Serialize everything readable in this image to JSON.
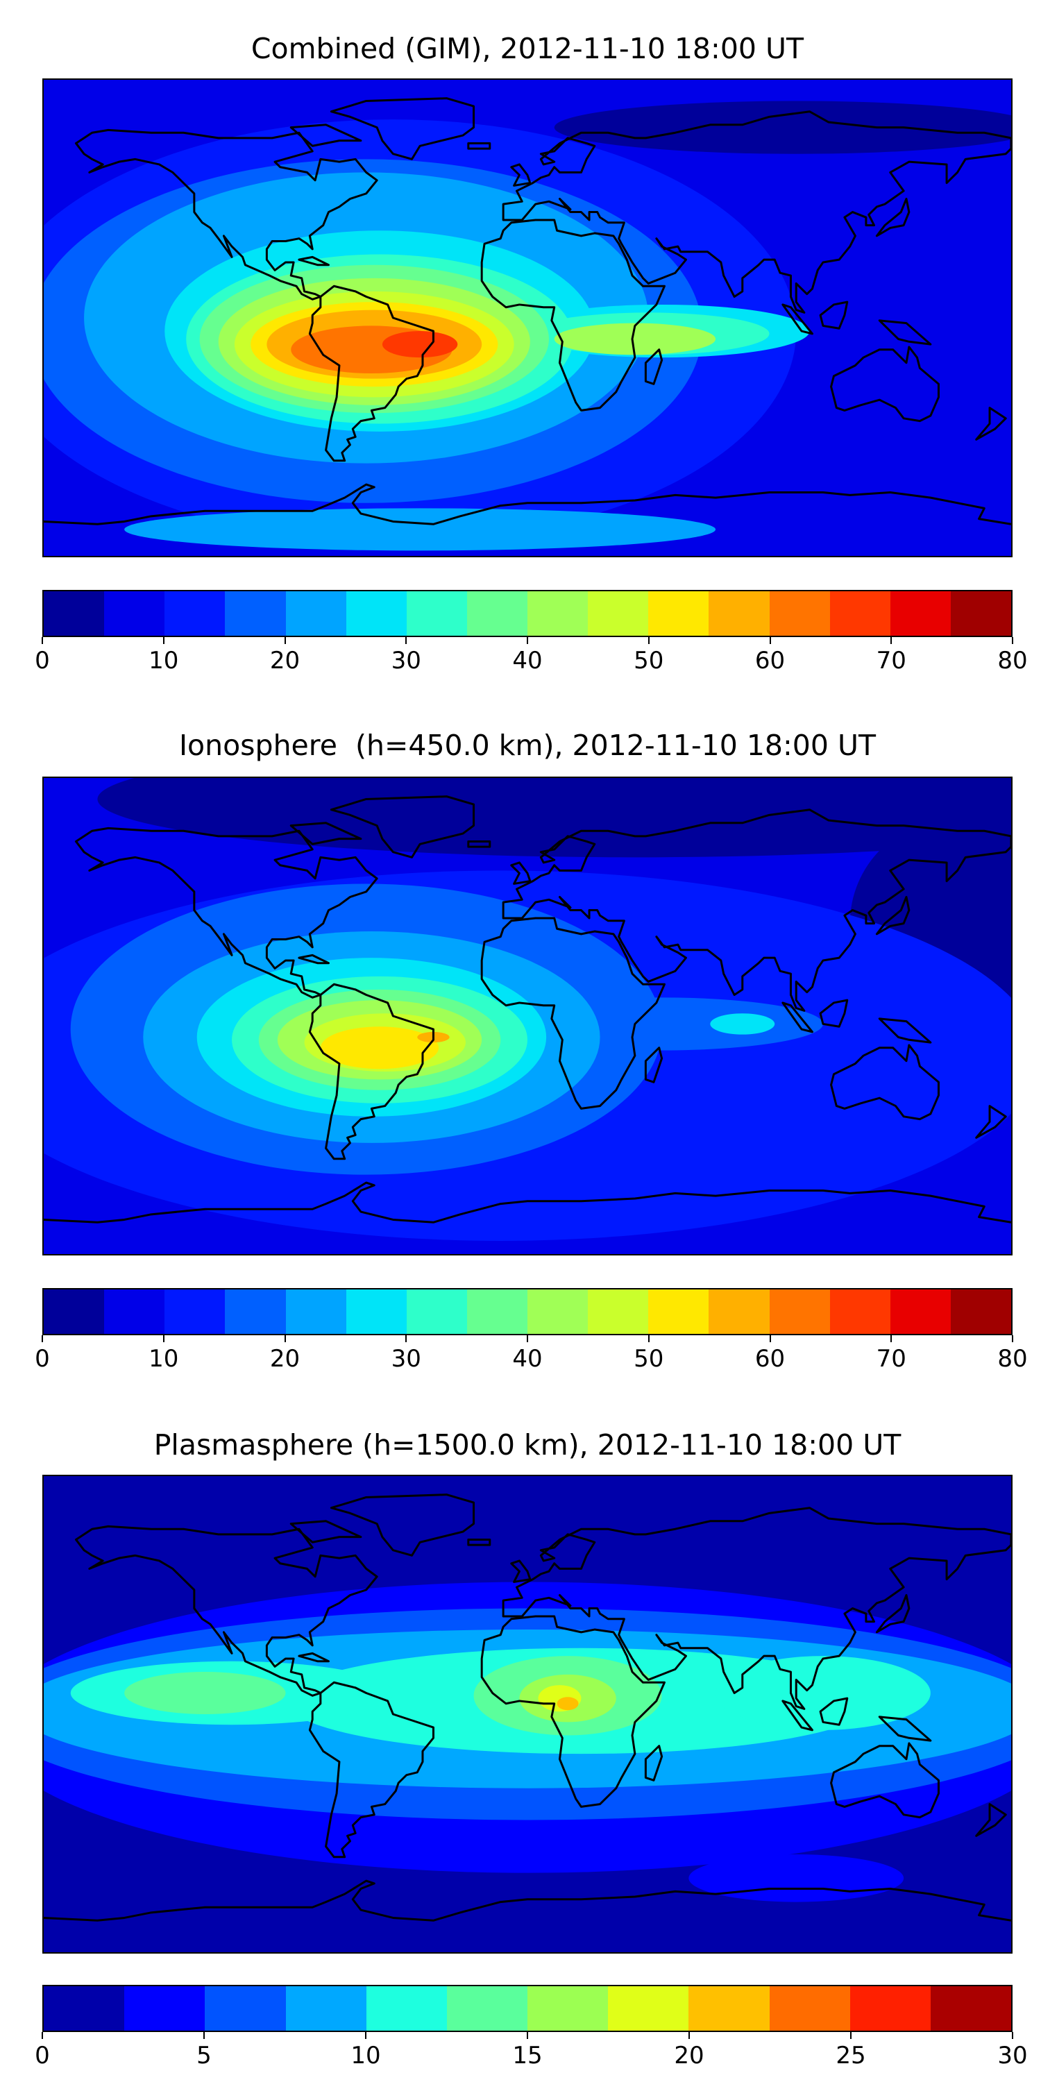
{
  "chart_data": [
    {
      "type": "heatmap",
      "title": "Combined (GIM), 2012-11-10 18:00 UT",
      "projection": "plate-carree",
      "xlim": [
        -180,
        180
      ],
      "ylim": [
        -90,
        90
      ],
      "colorbar": {
        "min": 0,
        "max": 80,
        "step": 5,
        "ticks": [
          0,
          10,
          20,
          30,
          40,
          50,
          60,
          70,
          80
        ],
        "tick_labels": [
          "0",
          "10",
          "20",
          "30",
          "40",
          "50",
          "60",
          "70",
          "80"
        ],
        "colors": [
          "#00009a",
          "#0000e8",
          "#0018ff",
          "#0060ff",
          "#00a4ff",
          "#00e4f8",
          "#2effca",
          "#66ff90",
          "#a0ff56",
          "#caff2c",
          "#ffe800",
          "#ffb000",
          "#ff7400",
          "#ff3800",
          "#e80000",
          "#a00000"
        ]
      },
      "background_level": 1,
      "regions": [
        {
          "level": 0,
          "lon": 100,
          "lat": 72,
          "dlon": 90,
          "dlat": 10
        },
        {
          "level": 2,
          "lon": -50,
          "lat": -5,
          "dlon": 150,
          "dlat": 80
        },
        {
          "level": 3,
          "lon": -60,
          "lat": -5,
          "dlon": 125,
          "dlat": 65
        },
        {
          "level": 4,
          "lon": -60,
          "lat": 0,
          "dlon": 105,
          "dlat": 55
        },
        {
          "level": 4,
          "lon": -40,
          "lat": -80,
          "dlon": 110,
          "dlat": 8
        },
        {
          "level": 5,
          "lon": -55,
          "lat": -5,
          "dlon": 80,
          "dlat": 38
        },
        {
          "level": 5,
          "lon": 50,
          "lat": -5,
          "dlon": 55,
          "dlat": 10
        },
        {
          "level": 6,
          "lon": -55,
          "lat": -8,
          "dlon": 72,
          "dlat": 32
        },
        {
          "level": 6,
          "lon": 45,
          "lat": -6,
          "dlon": 45,
          "dlat": 8
        },
        {
          "level": 7,
          "lon": -57,
          "lat": -8,
          "dlon": 65,
          "dlat": 28
        },
        {
          "level": 8,
          "lon": -57,
          "lat": -9,
          "dlon": 58,
          "dlat": 24
        },
        {
          "level": 8,
          "lon": 40,
          "lat": -8,
          "dlon": 30,
          "dlat": 6
        },
        {
          "level": 9,
          "lon": -57,
          "lat": -10,
          "dlon": 52,
          "dlat": 20
        },
        {
          "level": 10,
          "lon": -57,
          "lat": -10,
          "dlon": 46,
          "dlat": 16
        },
        {
          "level": 11,
          "lon": -57,
          "lat": -10,
          "dlon": 40,
          "dlat": 13
        },
        {
          "level": 12,
          "lon": -58,
          "lat": -12,
          "dlon": 30,
          "dlat": 9
        },
        {
          "level": 13,
          "lon": -40,
          "lat": -10,
          "dlon": 14,
          "dlat": 5
        }
      ]
    },
    {
      "type": "heatmap",
      "title": "Ionosphere  (h=450.0 km), 2012-11-10 18:00 UT",
      "projection": "plate-carree",
      "xlim": [
        -180,
        180
      ],
      "ylim": [
        -90,
        90
      ],
      "colorbar": {
        "min": 0,
        "max": 80,
        "step": 5,
        "ticks": [
          0,
          10,
          20,
          30,
          40,
          50,
          60,
          70,
          80
        ],
        "tick_labels": [
          "0",
          "10",
          "20",
          "30",
          "40",
          "50",
          "60",
          "70",
          "80"
        ],
        "colors": [
          "#00009a",
          "#0000e8",
          "#0018ff",
          "#0060ff",
          "#00a4ff",
          "#00e4f8",
          "#2effca",
          "#66ff90",
          "#a0ff56",
          "#caff2c",
          "#ffe800",
          "#ffb000",
          "#ff7400",
          "#ff3800",
          "#e80000",
          "#a00000"
        ]
      },
      "background_level": 1,
      "regions": [
        {
          "level": 0,
          "lon": 40,
          "lat": 82,
          "dlon": 200,
          "dlat": 22
        },
        {
          "level": 0,
          "lon": 160,
          "lat": 35,
          "dlon": 40,
          "dlat": 40
        },
        {
          "level": 2,
          "lon": -10,
          "lat": -15,
          "dlon": 200,
          "dlat": 70
        },
        {
          "level": 3,
          "lon": -60,
          "lat": -5,
          "dlon": 110,
          "dlat": 55
        },
        {
          "level": 3,
          "lon": 50,
          "lat": -3,
          "dlon": 60,
          "dlat": 10
        },
        {
          "level": 4,
          "lon": -58,
          "lat": -8,
          "dlon": 85,
          "dlat": 40
        },
        {
          "level": 5,
          "lon": -58,
          "lat": -8,
          "dlon": 65,
          "dlat": 30
        },
        {
          "level": 5,
          "lon": 80,
          "lat": -3,
          "dlon": 12,
          "dlat": 4
        },
        {
          "level": 6,
          "lon": -55,
          "lat": -9,
          "dlon": 55,
          "dlat": 24
        },
        {
          "level": 7,
          "lon": -55,
          "lat": -9,
          "dlon": 45,
          "dlat": 19
        },
        {
          "level": 8,
          "lon": -55,
          "lat": -9,
          "dlon": 38,
          "dlat": 15
        },
        {
          "level": 9,
          "lon": -53,
          "lat": -10,
          "dlon": 30,
          "dlat": 11
        },
        {
          "level": 10,
          "lon": -55,
          "lat": -12,
          "dlon": 22,
          "dlat": 8
        },
        {
          "level": 11,
          "lon": -35,
          "lat": -8,
          "dlon": 6,
          "dlat": 2
        }
      ]
    },
    {
      "type": "heatmap",
      "title": "Plasmasphere (h=1500.0 km), 2012-11-10 18:00 UT",
      "projection": "plate-carree",
      "xlim": [
        -180,
        180
      ],
      "ylim": [
        -90,
        90
      ],
      "colorbar": {
        "min": 0,
        "max": 30,
        "step": 2.5,
        "ticks": [
          0,
          5,
          10,
          15,
          20,
          25,
          30
        ],
        "tick_labels": [
          "0",
          "5",
          "10",
          "15",
          "20",
          "25",
          "30"
        ],
        "colors": [
          "#0000aa",
          "#0000ff",
          "#0054ff",
          "#00a8ff",
          "#1effdf",
          "#5aff9c",
          "#9cff52",
          "#e0ff18",
          "#ffc000",
          "#ff6c00",
          "#ff2000",
          "#aa0000"
        ]
      },
      "background_level": 0,
      "regions": [
        {
          "level": 1,
          "lon": 0,
          "lat": -5,
          "dlon": 200,
          "dlat": 55
        },
        {
          "level": 1,
          "lon": 100,
          "lat": -62,
          "dlon": 40,
          "dlat": 9
        },
        {
          "level": 2,
          "lon": 0,
          "lat": 0,
          "dlon": 200,
          "dlat": 40
        },
        {
          "level": 3,
          "lon": 0,
          "lat": 2,
          "dlon": 190,
          "dlat": 30
        },
        {
          "level": 4,
          "lon": 20,
          "lat": 5,
          "dlon": 110,
          "dlat": 20
        },
        {
          "level": 4,
          "lon": -110,
          "lat": 8,
          "dlon": 60,
          "dlat": 12
        },
        {
          "level": 4,
          "lon": 110,
          "lat": 8,
          "dlon": 40,
          "dlat": 14
        },
        {
          "level": 5,
          "lon": 15,
          "lat": 7,
          "dlon": 35,
          "dlat": 15
        },
        {
          "level": 5,
          "lon": -120,
          "lat": 8,
          "dlon": 30,
          "dlat": 8
        },
        {
          "level": 6,
          "lon": 15,
          "lat": 6,
          "dlon": 18,
          "dlat": 9
        },
        {
          "level": 7,
          "lon": 12,
          "lat": 6,
          "dlon": 8,
          "dlat": 5
        },
        {
          "level": 8,
          "lon": 15,
          "lat": 4,
          "dlon": 4,
          "dlat": 2.5
        }
      ]
    }
  ]
}
